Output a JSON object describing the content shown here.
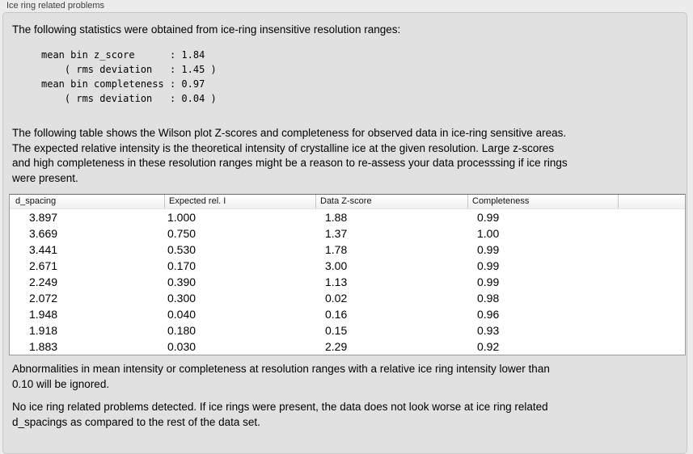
{
  "window": {
    "title": "Ice ring related problems"
  },
  "panel": {
    "intro": "The following statistics were obtained from ice-ring insensitive resolution ranges:",
    "stats_block": "mean bin z_score      : 1.84\n    ( rms deviation   : 1.45 )\nmean bin completeness : 0.97\n    ( rms deviation   : 0.04 )",
    "stats": {
      "mean_bin_z_score": "1.84",
      "z_score_rms_deviation": "1.45",
      "mean_bin_completeness": "0.97",
      "completeness_rms_deviation": "0.04"
    },
    "table_note": "The following table shows the Wilson plot Z-scores and completeness for observed data in ice-ring sensitive areas.\nThe expected relative intensity is the theoretical intensity of crystalline ice at the given resolution. Large z-scores\nand high completeness in these resolution ranges might be a reason to re-assess your data processsing if ice rings\nwere present.",
    "table": {
      "headers": [
        "d_spacing",
        "Expected rel. I",
        "Data Z-score",
        "Completeness"
      ],
      "rows": [
        [
          "3.897",
          "1.000",
          "1.88",
          "0.99"
        ],
        [
          "3.669",
          "0.750",
          "1.37",
          "1.00"
        ],
        [
          "3.441",
          "0.530",
          "1.78",
          "0.99"
        ],
        [
          "2.671",
          "0.170",
          "3.00",
          "0.99"
        ],
        [
          "2.249",
          "0.390",
          "1.13",
          "0.99"
        ],
        [
          "2.072",
          "0.300",
          "0.02",
          "0.98"
        ],
        [
          "1.948",
          "0.040",
          "0.16",
          "0.96"
        ],
        [
          "1.918",
          "0.180",
          "0.15",
          "0.93"
        ],
        [
          "1.883",
          "0.030",
          "2.29",
          "0.92"
        ]
      ]
    },
    "ignore_note": "Abnormalities in mean intensity or completeness at resolution ranges with a relative ice ring intensity lower than\n0.10 will be ignored.",
    "conclusion": "No ice ring related problems detected. If ice rings were present, the data does not look worse at ice ring related\nd_spacings as compared to the rest of the data set."
  },
  "colors": {
    "page_bg": "#ececec",
    "panel_bg": "#e1e1e1",
    "panel_border": "#c6c6c6",
    "table_border": "#9a9a9a",
    "header_separator": "#c6c6c6",
    "text": "#000000",
    "title_text": "#3e3e3e"
  }
}
